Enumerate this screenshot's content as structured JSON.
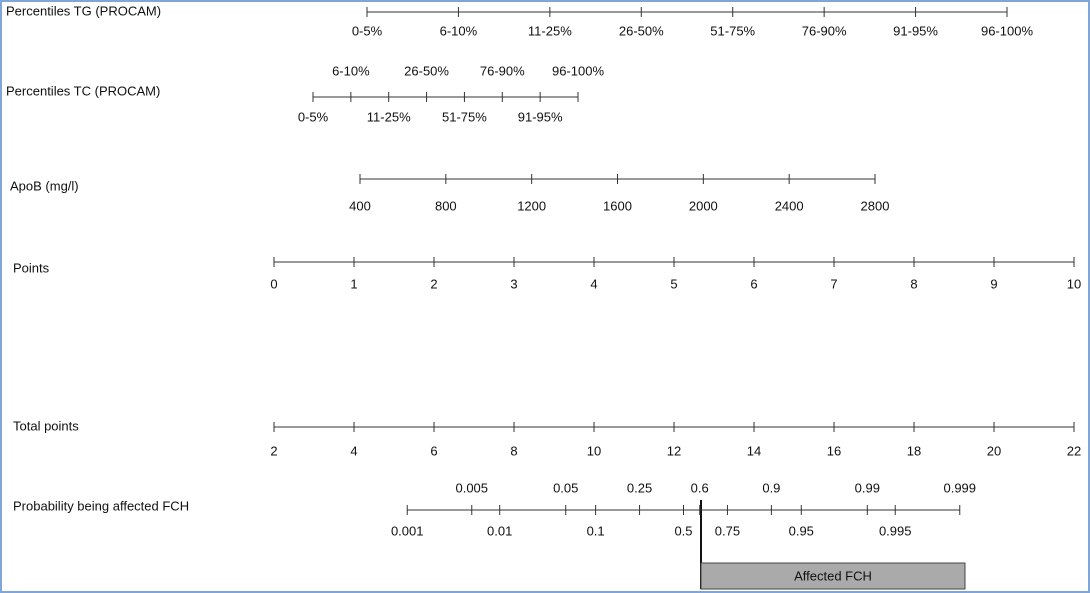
{
  "scales": [
    {
      "label": "Percentiles TG (PROCAM)",
      "scale": "category",
      "ticks": [
        "0-5%",
        "6-10%",
        "11-25%",
        "26-50%",
        "51-75%",
        "76-90%",
        "91-95%",
        "96-100%"
      ]
    },
    {
      "label": "Percentiles TC (PROCAM)",
      "scale": "category",
      "ticks": [
        "0-5%",
        "6-10%",
        "11-25%",
        "26-50%",
        "51-75%",
        "76-90%",
        "91-95%",
        "96-100%"
      ]
    },
    {
      "label": "ApoB (mg/l)",
      "scale": "linear",
      "ticks": [
        400,
        800,
        1200,
        1600,
        2000,
        2400,
        2800
      ]
    },
    {
      "label": "Points",
      "scale": "linear",
      "ticks": [
        0,
        1,
        2,
        3,
        4,
        5,
        6,
        7,
        8,
        9,
        10
      ]
    },
    {
      "label": "Total points",
      "scale": "linear",
      "ticks": [
        2,
        4,
        6,
        8,
        10,
        12,
        14,
        16,
        18,
        20,
        22
      ]
    },
    {
      "label": "Probability being affected FCH",
      "scale": "logit",
      "ticks": [
        0.001,
        0.005,
        0.01,
        0.05,
        0.1,
        0.25,
        0.5,
        0.6,
        0.75,
        0.9,
        0.95,
        0.99,
        0.995,
        0.999
      ]
    }
  ],
  "box_label": "Affected FCH"
}
